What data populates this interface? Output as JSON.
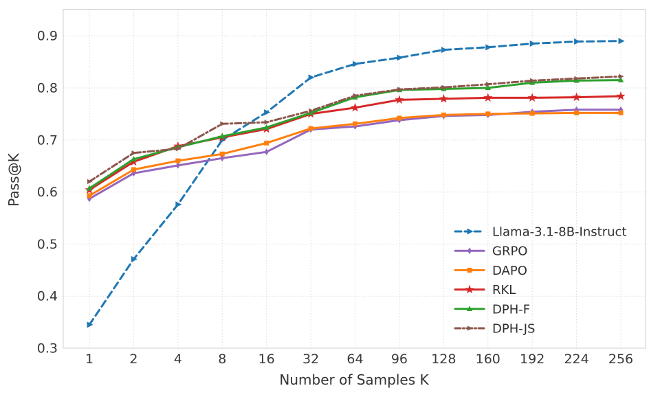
{
  "figure": {
    "background": "#ffffff",
    "grid_color": "#dadada",
    "frame_color": "#cfcfcf",
    "text_color": "#3a3a3a"
  },
  "chart_data": {
    "type": "line",
    "title": "",
    "xlabel": "Number of Samples K",
    "ylabel": "Pass@K",
    "x_tick_labels": [
      "1",
      "2",
      "4",
      "8",
      "16",
      "32",
      "64",
      "96",
      "128",
      "160",
      "192",
      "224",
      "256"
    ],
    "x_values": [
      1,
      2,
      4,
      8,
      16,
      32,
      64,
      96,
      128,
      160,
      192,
      224,
      256
    ],
    "y_ticks": [
      "0.3",
      "0.4",
      "0.5",
      "0.6",
      "0.7",
      "0.8",
      "0.9"
    ],
    "y_tick_values": [
      0.3,
      0.4,
      0.5,
      0.6,
      0.7,
      0.8,
      0.9
    ],
    "ylim": [
      0.3,
      0.951
    ],
    "grid": true,
    "grid_style": "dotted",
    "legend_position": "lower right",
    "series": [
      {
        "name": "Llama-3.1-8B-Instruct",
        "color": "#1f77b4",
        "line_style": "dashed",
        "marker": "arrow-right",
        "values": [
          0.345,
          0.471,
          0.576,
          0.7,
          0.753,
          0.82,
          0.846,
          0.858,
          0.873,
          0.878,
          0.885,
          0.889,
          0.89
        ]
      },
      {
        "name": "GRPO",
        "color": "#9467bd",
        "line_style": "solid",
        "marker": "diamond",
        "values": [
          0.587,
          0.636,
          0.651,
          0.665,
          0.677,
          0.72,
          0.726,
          0.738,
          0.746,
          0.748,
          0.754,
          0.758,
          0.758
        ]
      },
      {
        "name": "DAPO",
        "color": "#ff7f0e",
        "line_style": "solid",
        "marker": "square",
        "values": [
          0.593,
          0.643,
          0.66,
          0.673,
          0.694,
          0.722,
          0.731,
          0.742,
          0.748,
          0.75,
          0.751,
          0.752,
          0.752
        ]
      },
      {
        "name": "RKL",
        "color": "#d62728",
        "line_style": "solid",
        "marker": "star",
        "values": [
          0.604,
          0.658,
          0.688,
          0.705,
          0.721,
          0.75,
          0.762,
          0.777,
          0.779,
          0.781,
          0.781,
          0.782,
          0.784
        ]
      },
      {
        "name": "DPH-F",
        "color": "#2ca02c",
        "line_style": "solid",
        "marker": "triangle-up",
        "values": [
          0.607,
          0.663,
          0.686,
          0.707,
          0.724,
          0.752,
          0.782,
          0.796,
          0.798,
          0.8,
          0.81,
          0.814,
          0.815
        ]
      },
      {
        "name": "DPH-JS",
        "color": "#8c564b",
        "line_style": "dash-dot",
        "marker": "arrow-right-small",
        "values": [
          0.62,
          0.675,
          0.683,
          0.731,
          0.734,
          0.756,
          0.785,
          0.797,
          0.801,
          0.807,
          0.814,
          0.818,
          0.822
        ]
      }
    ]
  }
}
